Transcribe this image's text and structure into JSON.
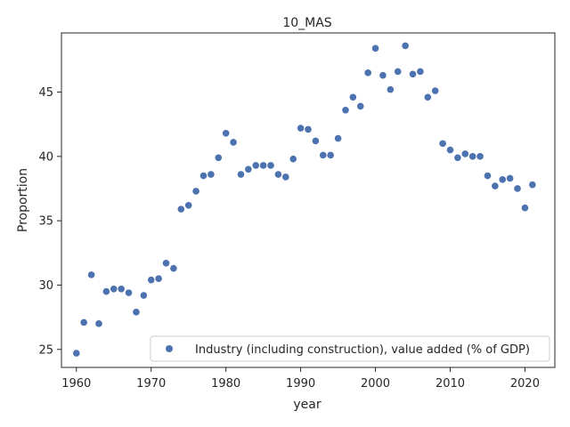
{
  "chart_data": {
    "type": "scatter",
    "title": "10_MAS",
    "xlabel": "year",
    "ylabel": "Proportion",
    "xlim": [
      1958,
      2024
    ],
    "ylim": [
      23.6,
      49.6
    ],
    "xticks": [
      1960,
      1970,
      1980,
      1990,
      2000,
      2010,
      2020
    ],
    "yticks": [
      25,
      30,
      35,
      40,
      45
    ],
    "grid": false,
    "legend_position": "lower-right",
    "series": [
      {
        "name": "Industry (including construction), value added (% of GDP)",
        "color": "#4c72b0",
        "x": [
          1960,
          1961,
          1962,
          1963,
          1964,
          1965,
          1966,
          1967,
          1968,
          1969,
          1970,
          1971,
          1972,
          1973,
          1974,
          1975,
          1976,
          1977,
          1978,
          1979,
          1980,
          1981,
          1982,
          1983,
          1984,
          1985,
          1986,
          1987,
          1988,
          1989,
          1990,
          1991,
          1992,
          1993,
          1994,
          1995,
          1996,
          1997,
          1998,
          1999,
          2000,
          2001,
          2002,
          2003,
          2004,
          2005,
          2006,
          2007,
          2008,
          2009,
          2010,
          2011,
          2012,
          2013,
          2014,
          2015,
          2016,
          2017,
          2018,
          2019,
          2020,
          2021
        ],
        "y": [
          24.7,
          27.1,
          30.8,
          27.0,
          29.5,
          29.7,
          29.7,
          29.4,
          27.9,
          29.2,
          30.4,
          30.5,
          31.7,
          31.3,
          35.9,
          36.2,
          37.3,
          38.5,
          38.6,
          39.9,
          41.8,
          41.1,
          38.6,
          39.0,
          39.3,
          39.3,
          39.3,
          38.6,
          38.4,
          39.8,
          42.2,
          42.1,
          41.2,
          40.1,
          40.1,
          41.4,
          43.6,
          44.6,
          43.9,
          46.5,
          48.4,
          46.3,
          45.2,
          46.6,
          48.6,
          46.4,
          46.6,
          44.6,
          45.1,
          41.0,
          40.5,
          39.9,
          40.2,
          40.0,
          40.0,
          38.5,
          37.7,
          38.2,
          38.3,
          37.5,
          36.0,
          37.8
        ]
      }
    ]
  }
}
